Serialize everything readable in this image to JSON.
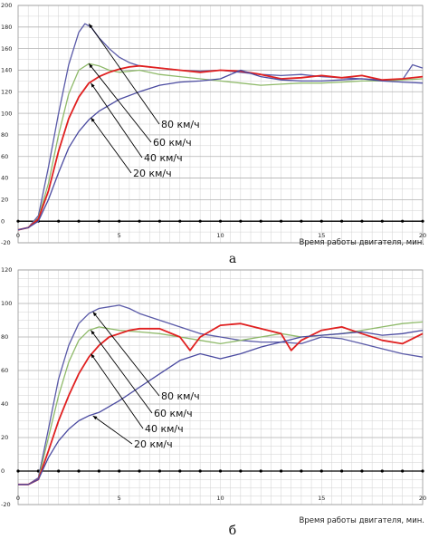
{
  "chart_data": [
    {
      "type": "line",
      "panel_label": "а",
      "xlabel": "Время работы двигателя, мин.",
      "ylabel": "",
      "xlim": [
        0,
        20
      ],
      "ylim": [
        -20,
        200
      ],
      "x_ticks": [
        0,
        5,
        10,
        15,
        20
      ],
      "y_ticks": [
        -20,
        0,
        20,
        40,
        60,
        80,
        100,
        120,
        140,
        160,
        180,
        200
      ],
      "grid": true,
      "series": [
        {
          "name": "80 км/ч",
          "color": "#5a5aa8",
          "x": [
            0,
            0.5,
            1,
            1.5,
            2,
            2.5,
            3,
            3.3,
            3.6,
            4,
            4.5,
            5,
            5.5,
            6,
            7,
            8,
            9,
            10,
            11,
            12,
            13,
            14,
            15,
            16,
            17,
            18,
            19,
            19.5,
            20
          ],
          "y": [
            -8,
            -6,
            5,
            50,
            100,
            145,
            175,
            183,
            180,
            170,
            160,
            152,
            147,
            144,
            142,
            140,
            139,
            140,
            138,
            136,
            135,
            136,
            134,
            133,
            132,
            131,
            131,
            145,
            142
          ]
        },
        {
          "name": "60 км/ч",
          "color": "#8fba6a",
          "x": [
            0,
            0.5,
            1,
            1.5,
            2,
            2.5,
            3,
            3.5,
            4,
            4.5,
            5,
            6,
            7,
            8,
            9,
            10,
            11,
            12,
            13,
            14,
            15,
            16,
            17,
            18,
            19,
            20
          ],
          "y": [
            -8,
            -6,
            3,
            35,
            80,
            118,
            140,
            146,
            144,
            140,
            138,
            140,
            136,
            134,
            132,
            130,
            128,
            126,
            127,
            128,
            128,
            129,
            130,
            130,
            131,
            132
          ]
        },
        {
          "name": "40 км/ч",
          "color": "#e02020",
          "x": [
            0,
            0.5,
            1,
            1.5,
            2,
            2.5,
            3,
            3.5,
            4,
            4.5,
            5,
            5.5,
            6,
            7,
            8,
            9,
            10,
            11,
            12,
            13,
            14,
            15,
            16,
            17,
            18,
            19,
            20
          ],
          "y": [
            -8,
            -6,
            2,
            28,
            65,
            95,
            115,
            128,
            134,
            138,
            141,
            143,
            144,
            142,
            140,
            138,
            140,
            139,
            136,
            132,
            133,
            135,
            133,
            135,
            131,
            132,
            134
          ]
        },
        {
          "name": "20 км/ч",
          "color": "#4a4aa0",
          "x": [
            0,
            0.5,
            1,
            1.5,
            2,
            2.5,
            3,
            3.5,
            4,
            5,
            6,
            7,
            8,
            9,
            10,
            11,
            12,
            13,
            14,
            15,
            16,
            17,
            18,
            19,
            20
          ],
          "y": [
            -8,
            -6,
            0,
            20,
            45,
            68,
            83,
            94,
            102,
            113,
            120,
            126,
            129,
            130,
            132,
            140,
            134,
            131,
            130,
            130,
            131,
            132,
            130,
            129,
            128
          ]
        }
      ],
      "annotations": [
        "80 км/ч",
        "60 км/ч",
        "40 км/ч",
        "20 км/ч"
      ]
    },
    {
      "type": "line",
      "panel_label": "б",
      "xlabel": "Время работы двигателя, мин.",
      "ylabel": "",
      "xlim": [
        0,
        20
      ],
      "ylim": [
        -20,
        120
      ],
      "x_ticks": [
        0,
        5,
        10,
        15,
        20
      ],
      "y_ticks": [
        -20,
        0,
        20,
        40,
        60,
        80,
        100,
        120
      ],
      "grid": true,
      "series": [
        {
          "name": "80 км/ч",
          "color": "#5a5aa8",
          "x": [
            0,
            0.5,
            1,
            1.5,
            2,
            2.5,
            3,
            3.5,
            4,
            4.5,
            5,
            5.5,
            6,
            7,
            8,
            9,
            10,
            11,
            12,
            13,
            14,
            15,
            16,
            17,
            18,
            19,
            20
          ],
          "y": [
            -8,
            -8,
            -4,
            25,
            55,
            75,
            88,
            94,
            97,
            98,
            99,
            97,
            94,
            90,
            86,
            82,
            80,
            78,
            77,
            77,
            76,
            80,
            79,
            76,
            73,
            70,
            68
          ]
        },
        {
          "name": "60 км/ч",
          "color": "#8fba6a",
          "x": [
            0,
            0.5,
            1,
            1.5,
            2,
            2.5,
            3,
            3.5,
            4,
            4.5,
            5,
            6,
            7,
            8,
            9,
            10,
            11,
            12,
            13,
            14,
            15,
            16,
            17,
            18,
            19,
            20
          ],
          "y": [
            -8,
            -8,
            -5,
            20,
            45,
            65,
            78,
            84,
            86,
            85,
            84,
            83,
            82,
            80,
            78,
            76,
            78,
            80,
            82,
            80,
            81,
            82,
            84,
            86,
            88,
            89
          ]
        },
        {
          "name": "40 км/ч",
          "color": "#e02020",
          "x": [
            0,
            0.5,
            1,
            1.5,
            2,
            2.5,
            3,
            3.5,
            4,
            4.5,
            5,
            5.5,
            6,
            7,
            8,
            8.5,
            9,
            10,
            11,
            12,
            13,
            13.5,
            14,
            15,
            16,
            17,
            18,
            19,
            20
          ],
          "y": [
            -8,
            -8,
            -5,
            12,
            30,
            45,
            58,
            68,
            75,
            80,
            82,
            84,
            85,
            85,
            80,
            72,
            80,
            87,
            88,
            85,
            82,
            72,
            78,
            84,
            86,
            82,
            78,
            76,
            82
          ]
        },
        {
          "name": "20 км/ч",
          "color": "#4a4aa0",
          "x": [
            0,
            0.5,
            1,
            1.5,
            2,
            2.5,
            3,
            3.5,
            4,
            5,
            6,
            7,
            8,
            9,
            10,
            11,
            12,
            13,
            14,
            15,
            16,
            17,
            18,
            19,
            20
          ],
          "y": [
            -8,
            -8,
            -5,
            8,
            18,
            25,
            30,
            33,
            35,
            42,
            50,
            58,
            66,
            70,
            67,
            70,
            74,
            77,
            80,
            81,
            82,
            83,
            81,
            82,
            84
          ]
        }
      ],
      "annotations": [
        "80 км/ч",
        "60 км/ч",
        "40 км/ч",
        "20 км/ч"
      ]
    }
  ]
}
